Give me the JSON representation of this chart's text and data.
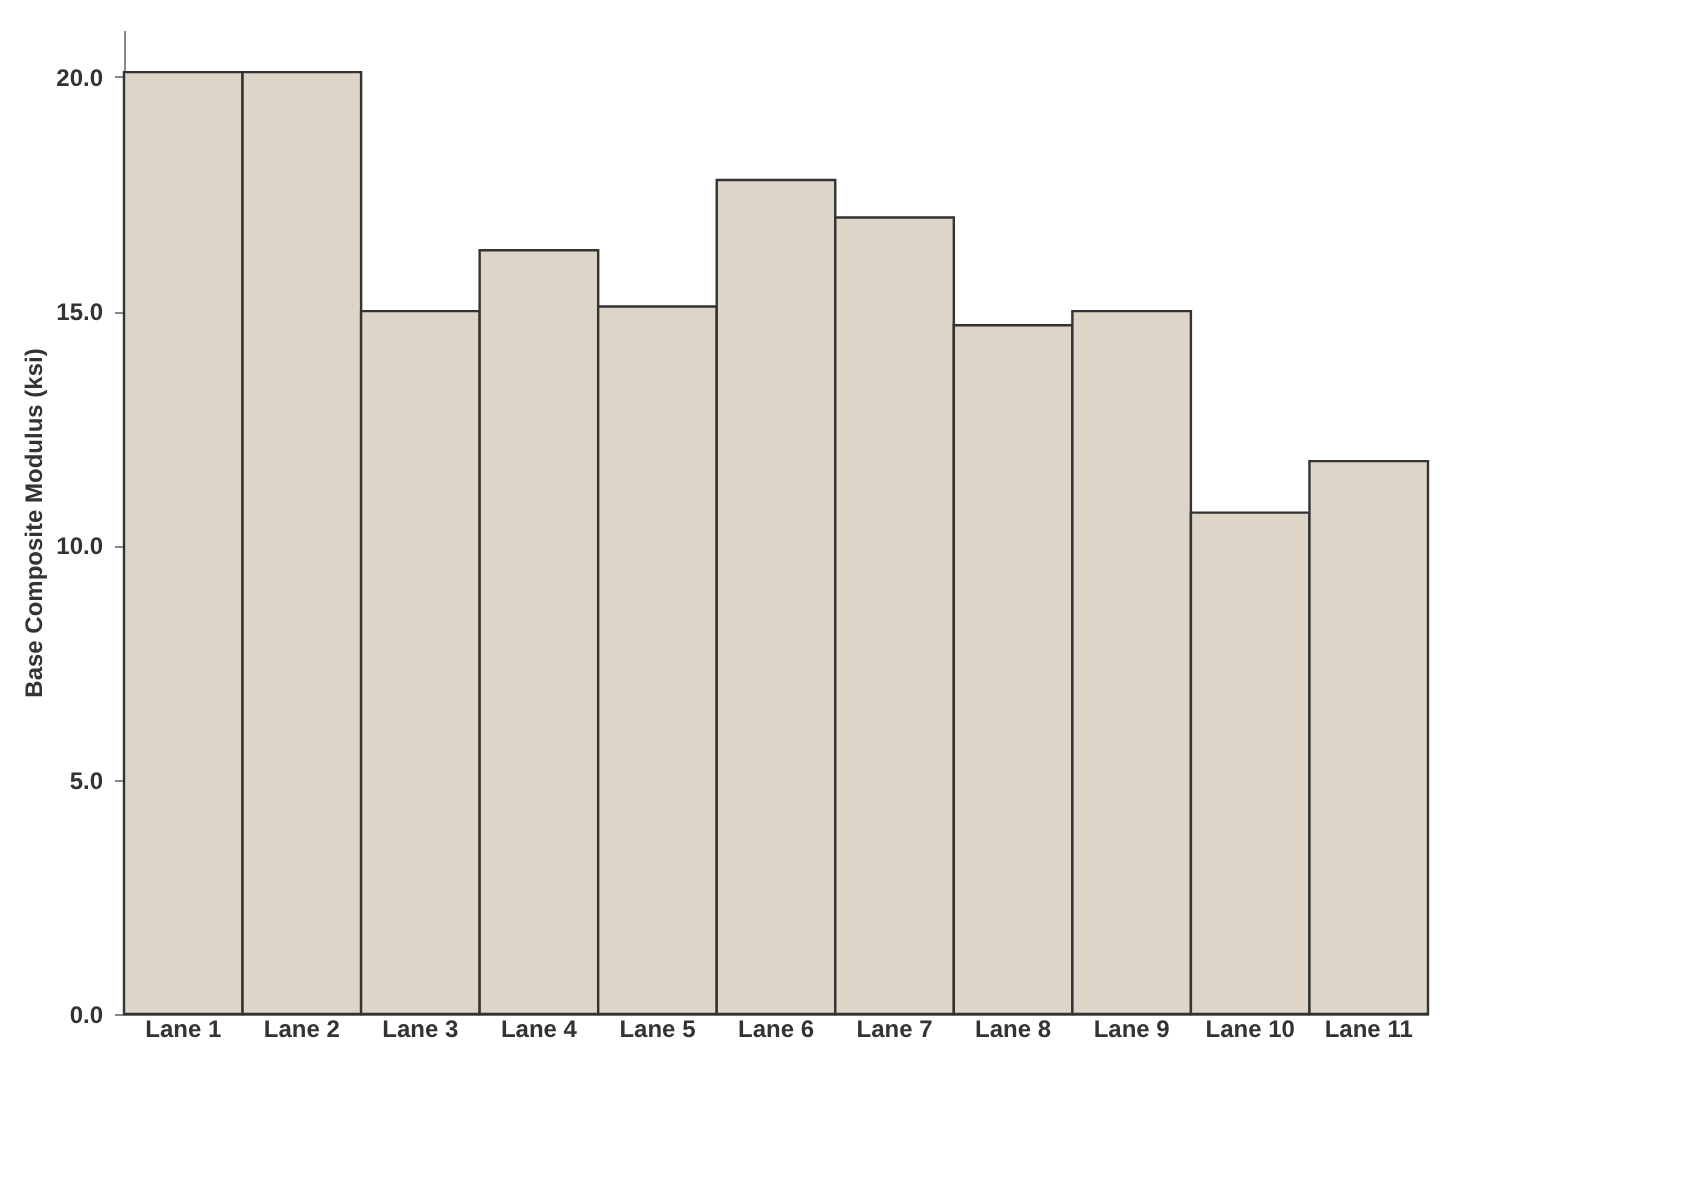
{
  "chart_data": {
    "type": "bar",
    "ylabel": "Base Composite Modulus (ksi)",
    "categories": [
      "Lane 1",
      "Lane 2",
      "Lane 3",
      "Lane 4",
      "Lane 5",
      "Lane 6",
      "Lane 7",
      "Lane 8",
      "Lane 9",
      "Lane 10",
      "Lane 11"
    ],
    "values": [
      20.1,
      20.1,
      15.0,
      16.3,
      15.1,
      17.8,
      17.0,
      14.7,
      15.0,
      10.7,
      11.8
    ],
    "color": "#ddd5c7",
    "ylim": [
      0,
      21
    ],
    "yticks": [
      {
        "value": 0,
        "label": "0.0"
      },
      {
        "value": 5,
        "label": "5.0"
      },
      {
        "value": 10,
        "label": "10.0"
      },
      {
        "value": 15,
        "label": "15.0"
      },
      {
        "value": 20,
        "label": "20.0"
      }
    ],
    "grid": false
  }
}
